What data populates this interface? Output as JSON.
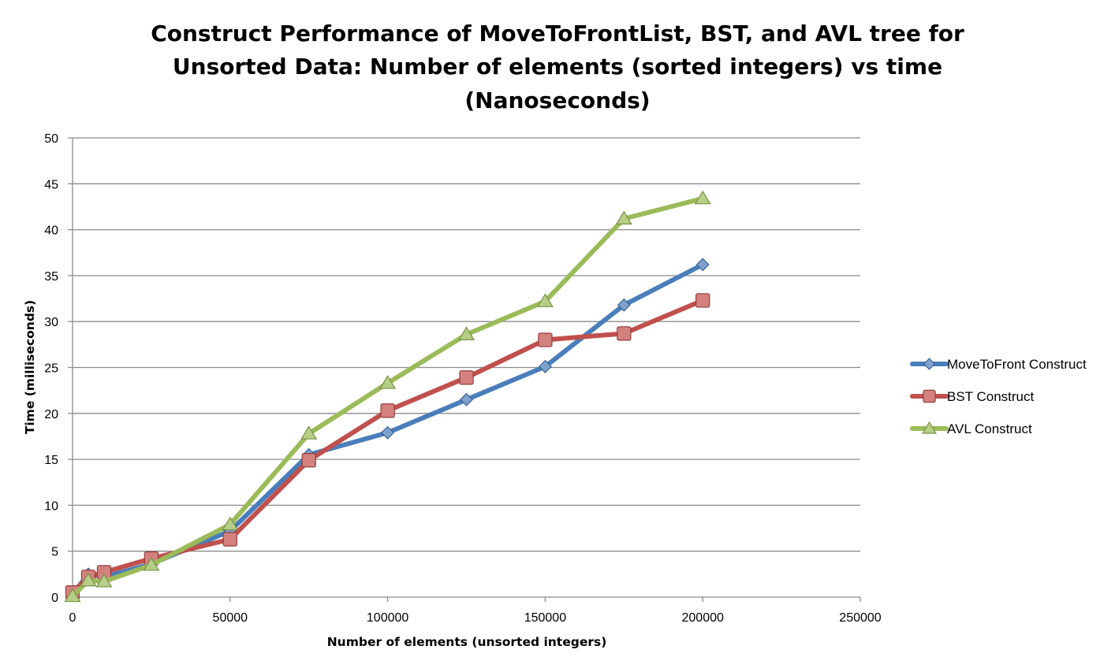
{
  "chart_data": {
    "type": "line",
    "title_lines": [
      "Construct  Performance of MoveToFrontList, BST, and AVL tree for",
      "Unsorted Data: Number of elements (sorted integers) vs time",
      "(Nanoseconds)"
    ],
    "xlabel": "Number of elements (unsorted integers)",
    "ylabel": "Time (milliseconds)",
    "xlim": [
      0,
      250000
    ],
    "ylim": [
      0,
      50
    ],
    "xticks": [
      0,
      50000,
      100000,
      150000,
      200000,
      250000
    ],
    "yticks": [
      0,
      5,
      10,
      15,
      20,
      25,
      30,
      35,
      40,
      45,
      50
    ],
    "grid": "horizontal",
    "legend_position": "right",
    "series": [
      {
        "name": "MoveToFront Construct",
        "color": "#4a7ebb",
        "marker": "diamond",
        "x": [
          0,
          5000,
          10000,
          25000,
          50000,
          75000,
          100000,
          125000,
          150000,
          175000,
          200000
        ],
        "y": [
          0.3,
          2.5,
          2.2,
          3.6,
          7.2,
          15.5,
          17.9,
          21.5,
          25.1,
          31.8,
          36.2
        ]
      },
      {
        "name": "BST Construct",
        "color": "#c0504d",
        "marker": "square",
        "x": [
          0,
          5000,
          10000,
          25000,
          50000,
          75000,
          100000,
          125000,
          150000,
          175000,
          200000
        ],
        "y": [
          0.5,
          2.2,
          2.7,
          4.2,
          6.3,
          14.9,
          20.3,
          23.9,
          28.0,
          28.7,
          32.3
        ]
      },
      {
        "name": "AVL Construct",
        "color": "#9bbb59",
        "marker": "triangle",
        "x": [
          0,
          5000,
          10000,
          25000,
          50000,
          75000,
          100000,
          125000,
          150000,
          175000,
          200000
        ],
        "y": [
          0.1,
          1.8,
          1.7,
          3.5,
          7.9,
          17.8,
          23.3,
          28.6,
          32.2,
          41.2,
          43.4
        ]
      }
    ]
  }
}
